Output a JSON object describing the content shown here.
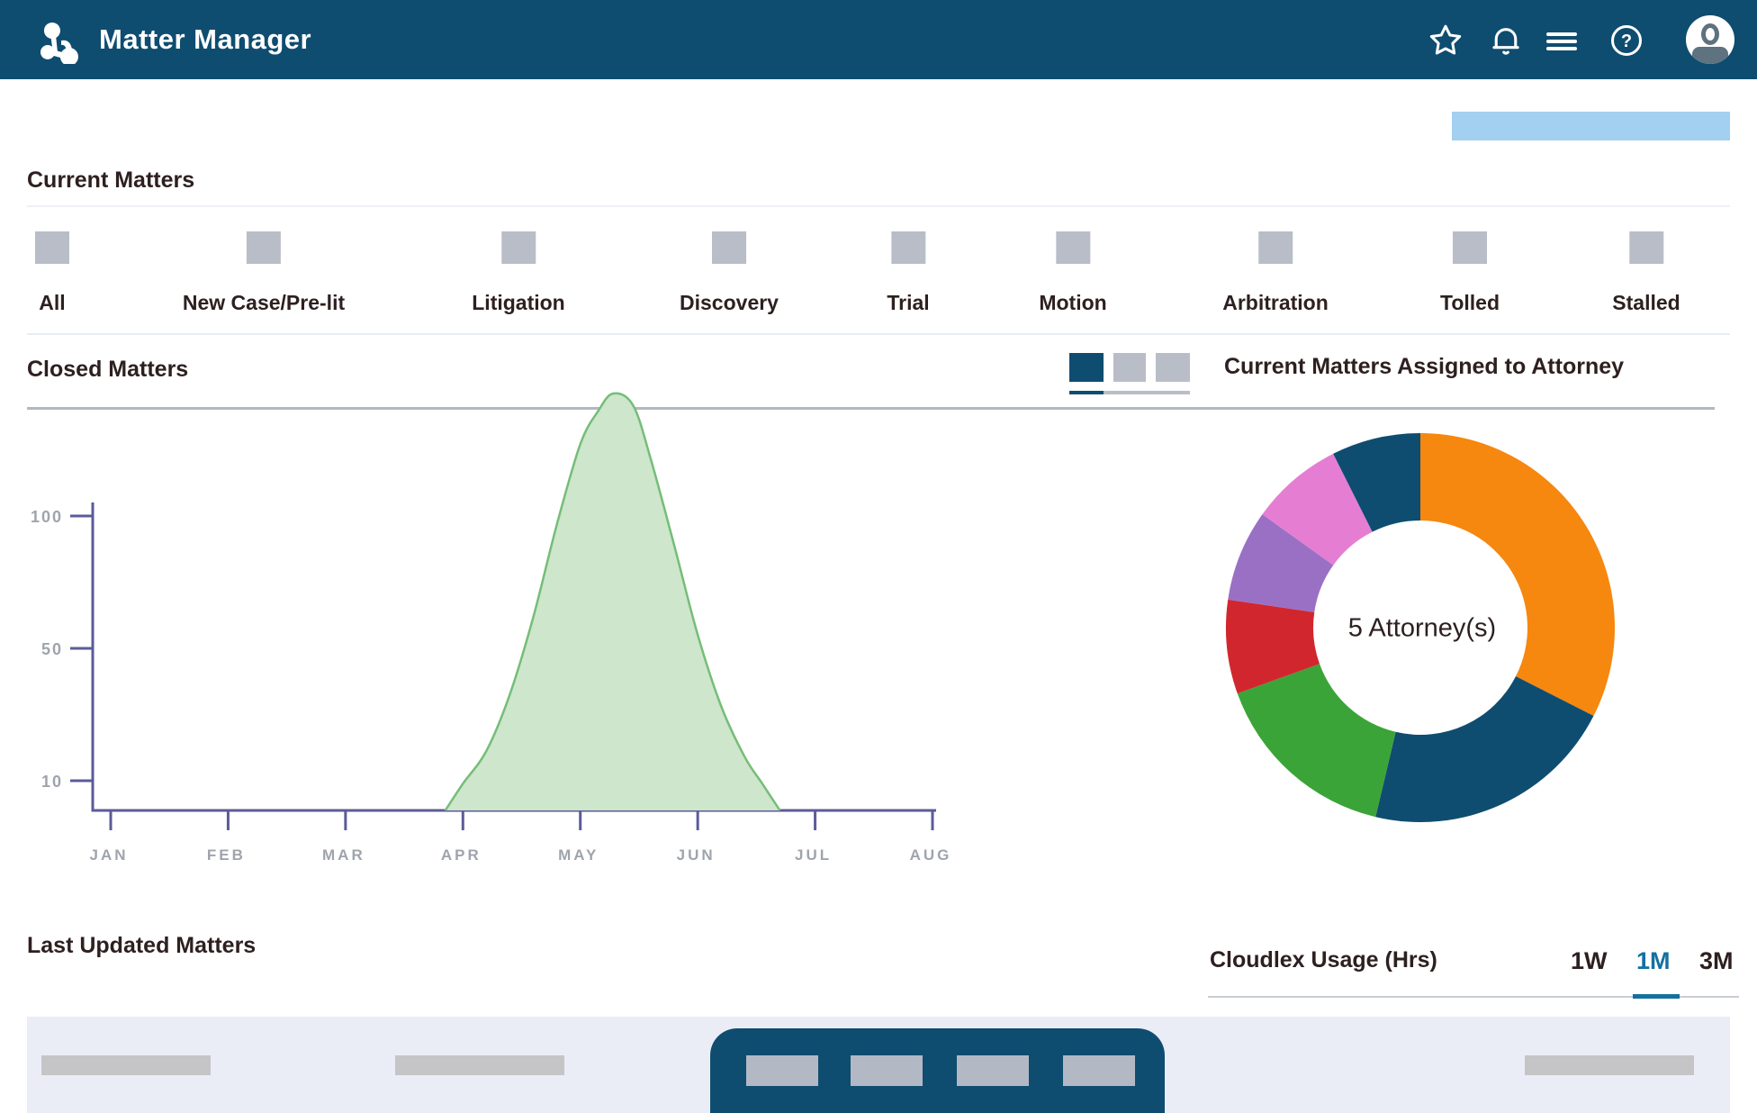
{
  "header": {
    "app_title": "Matter Manager",
    "background_color": "#0E4D70",
    "icons": [
      "logo-icon",
      "star-icon",
      "bell-icon",
      "menu-icon",
      "help-icon",
      "avatar"
    ]
  },
  "toolbar": {
    "placeholder_bar_color": "#A3CFF0"
  },
  "current_matters": {
    "title": "Current Matters",
    "categories": [
      "All",
      "New Case/Pre-lit",
      "Litigation",
      "Discovery",
      "Trial",
      "Motion",
      "Arbitration",
      "Tolled",
      "Stalled"
    ]
  },
  "closed_matters": {
    "title": "Closed Matters",
    "right_title": "Current Matters Assigned to Attorney",
    "toggle_colors": [
      "#0E4D70",
      "#B9BDC7",
      "#B9BDC7"
    ],
    "active_toggle_index": 0
  },
  "last_updated": {
    "title": "Last Updated Matters"
  },
  "usage": {
    "title": "Cloudlex Usage (Hrs)",
    "ranges": [
      "1W",
      "1M",
      "3M"
    ],
    "active_range": "1M",
    "accent_color": "#1470A0"
  },
  "chart_data": [
    {
      "type": "area",
      "title": "Closed Matters by month",
      "x_tick_labels": [
        "JAN",
        "FEB",
        "MAR",
        "APR",
        "MAY",
        "JUN",
        "JUL",
        "AUG"
      ],
      "y_tick_labels": [
        "100",
        "50",
        "10"
      ],
      "ylim": [
        0,
        145
      ],
      "grid": false,
      "legend": "none",
      "x_unit": "month_index_0_is_JAN",
      "series": [
        {
          "name": "Closed Matters",
          "points": [
            [
              2.85,
              0
            ],
            [
              3.0,
              9
            ],
            [
              3.2,
              20
            ],
            [
              3.4,
              39
            ],
            [
              3.6,
              65
            ],
            [
              3.8,
              96
            ],
            [
              4.0,
              123
            ],
            [
              4.15,
              134
            ],
            [
              4.28,
              140
            ],
            [
              4.45,
              136
            ],
            [
              4.6,
              118
            ],
            [
              4.8,
              89
            ],
            [
              5.0,
              59
            ],
            [
              5.2,
              35
            ],
            [
              5.4,
              18
            ],
            [
              5.55,
              9
            ],
            [
              5.7,
              0
            ]
          ]
        }
      ],
      "stroke": "#76BD78",
      "fill": "#CDE6CC",
      "axis_color": "#5B5B99",
      "tick_label_color": "#9FA4AC"
    },
    {
      "type": "donut",
      "title": "Current Matters Assigned to Attorney",
      "center_label": "5 Attorney(s)",
      "legend": "none",
      "segments": [
        {
          "color": "#F6870F",
          "percent": 32.5
        },
        {
          "color": "#0E4D70",
          "percent": 21.2
        },
        {
          "color": "#3BA438",
          "percent": 15.8
        },
        {
          "color": "#D2262E",
          "percent": 7.8
        },
        {
          "color": "#9A70C5",
          "percent": 7.6
        },
        {
          "color": "#E57ED3",
          "percent": 7.7
        },
        {
          "color": "#0E4D70",
          "percent": 7.4
        }
      ]
    }
  ]
}
